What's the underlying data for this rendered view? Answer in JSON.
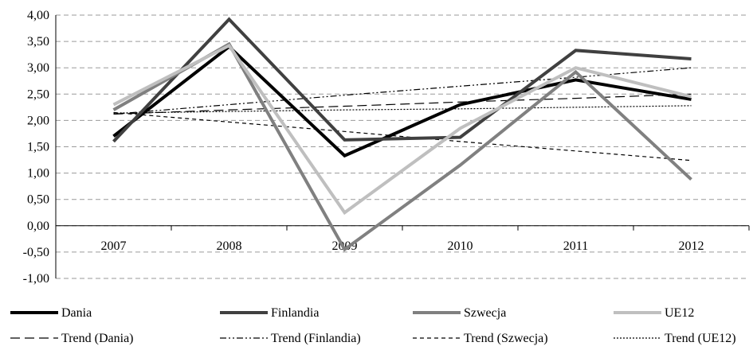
{
  "chart_data": {
    "type": "line",
    "categories": [
      "2007",
      "2008",
      "2009",
      "2010",
      "2011",
      "2012"
    ],
    "ylim": [
      -1.0,
      4.0
    ],
    "ytick_step": 0.5,
    "ytick_labels": [
      "-1,00",
      "-0,50",
      "0,00",
      "0,50",
      "1,00",
      "1,50",
      "2,00",
      "2,50",
      "3,00",
      "3,50",
      "4,00"
    ],
    "grid": "horizontal dashed",
    "legend_position": "bottom",
    "series": [
      {
        "name": "Dania",
        "values": [
          1.7,
          3.4,
          1.33,
          2.3,
          2.77,
          2.4
        ],
        "color": "#000000",
        "width": 4,
        "dash": ""
      },
      {
        "name": "Finlandia",
        "values": [
          1.6,
          3.92,
          1.63,
          1.68,
          3.33,
          3.17
        ],
        "color": "#404040",
        "width": 4,
        "dash": ""
      },
      {
        "name": "Szwecja",
        "values": [
          2.2,
          3.45,
          -0.45,
          1.15,
          2.92,
          0.88
        ],
        "color": "#808080",
        "width": 4,
        "dash": ""
      },
      {
        "name": "UE12",
        "values": [
          2.3,
          3.42,
          0.25,
          1.85,
          3.0,
          2.45
        ],
        "color": "#bfbfbf",
        "width": 4,
        "dash": ""
      }
    ],
    "trends": [
      {
        "name": "Trend (Dania)",
        "values": [
          2.12,
          2.2,
          2.27,
          2.35,
          2.42,
          2.5
        ],
        "color": "#000000",
        "width": 1.2,
        "dash": "12,6"
      },
      {
        "name": "Trend (Finlandia)",
        "values": [
          2.12,
          2.3,
          2.48,
          2.65,
          2.82,
          3.0
        ],
        "color": "#000000",
        "width": 1.2,
        "dash": "8,3,2,3,2,3"
      },
      {
        "name": "Trend (Szwecja)",
        "values": [
          2.15,
          1.97,
          1.79,
          1.6,
          1.42,
          1.24
        ],
        "color": "#000000",
        "width": 1.2,
        "dash": "5,4"
      },
      {
        "name": "Trend (UE12)",
        "values": [
          2.14,
          2.17,
          2.2,
          2.22,
          2.25,
          2.28
        ],
        "color": "#000000",
        "width": 1.2,
        "dash": "2,2"
      }
    ]
  }
}
